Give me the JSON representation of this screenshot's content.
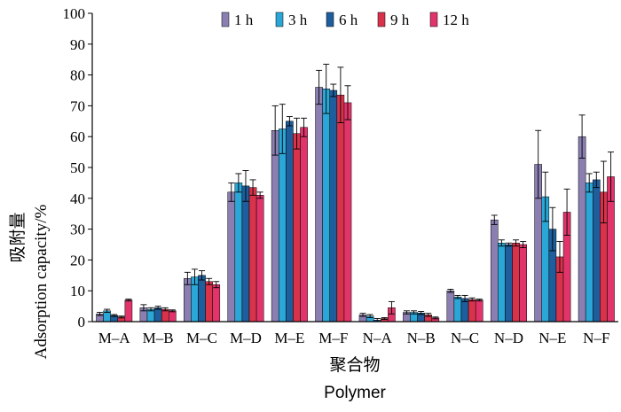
{
  "chart_data": {
    "type": "bar",
    "title": "",
    "xlabel": "聚合物",
    "xlabel_en": "Polymer",
    "ylabel": "吸附量",
    "ylabel_en": "Adsorption capacity/%",
    "ylim": [
      0,
      100
    ],
    "yticks": [
      0,
      10,
      20,
      30,
      40,
      50,
      60,
      70,
      80,
      90,
      100
    ],
    "grid": false,
    "legend_position": "top-center",
    "error_bars": true,
    "categories": [
      "M–A",
      "M–B",
      "M–C",
      "M–D",
      "M–E",
      "M–F",
      "N–A",
      "N–B",
      "N–C",
      "N–D",
      "N–E",
      "N–F"
    ],
    "series": [
      {
        "name": "1 h",
        "color": "#8b7fb1",
        "values": [
          2.5,
          4.5,
          14,
          42,
          62,
          76,
          2.2,
          3,
          10,
          33,
          51,
          60
        ],
        "errors": [
          0.5,
          1,
          2,
          3,
          8,
          5.5,
          0.5,
          0.5,
          0.5,
          1.5,
          11,
          7
        ]
      },
      {
        "name": "3 h",
        "color": "#2aa7d6",
        "values": [
          3.5,
          4,
          14.5,
          45,
          62.5,
          75.5,
          1.8,
          3,
          8,
          25.5,
          40.5,
          45
        ],
        "errors": [
          0.5,
          0.5,
          2.5,
          3,
          8,
          8,
          0.5,
          0.5,
          0.5,
          1,
          8,
          3
        ]
      },
      {
        "name": "6 h",
        "color": "#1e5e9c",
        "values": [
          2,
          4.5,
          15,
          44,
          65,
          75,
          0.5,
          2.8,
          7.5,
          25,
          30,
          46
        ],
        "errors": [
          0.3,
          0.5,
          1.5,
          5,
          1.5,
          2,
          0.5,
          0.5,
          1,
          0.5,
          7,
          2.5
        ]
      },
      {
        "name": "9 h",
        "color": "#d8334a",
        "values": [
          1.5,
          4,
          13,
          43.5,
          61,
          73.5,
          1,
          2.2,
          7.2,
          25.5,
          21,
          42
        ],
        "errors": [
          0.3,
          0.5,
          1,
          2.5,
          5,
          9,
          0.3,
          0.5,
          0.5,
          1,
          5,
          10
        ]
      },
      {
        "name": "12 h",
        "color": "#e0346a",
        "values": [
          7,
          3.5,
          12,
          41,
          63,
          71,
          4.5,
          1.2,
          7,
          25,
          35.5,
          47
        ],
        "errors": [
          0.3,
          0.3,
          1,
          1,
          3,
          5.5,
          2,
          0.3,
          0.3,
          1,
          7.5,
          8
        ]
      }
    ]
  }
}
